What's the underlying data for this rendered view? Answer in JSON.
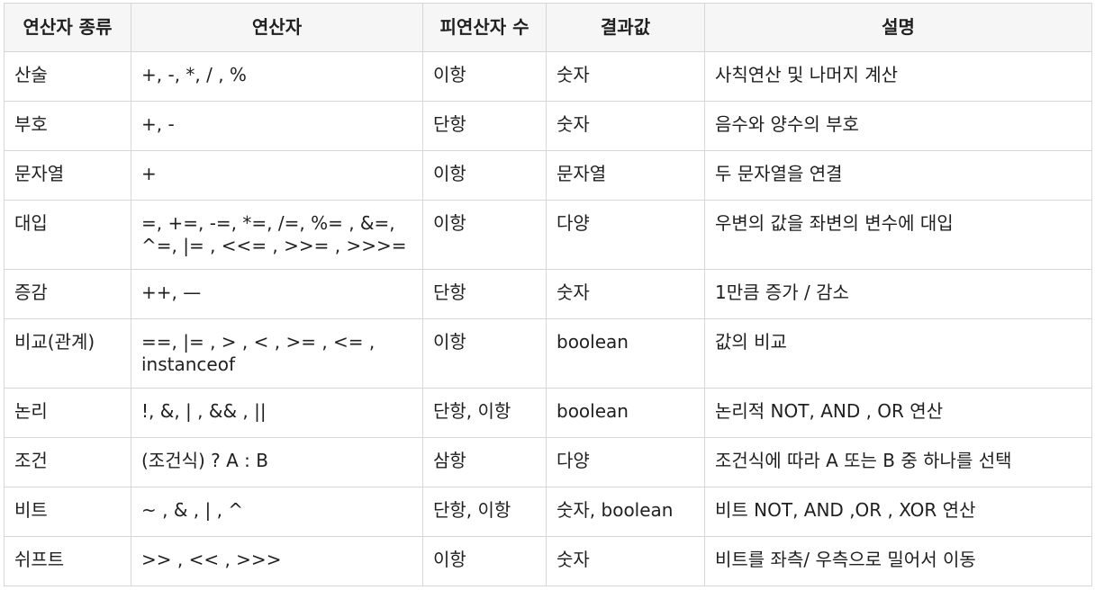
{
  "table": {
    "headers": [
      "연산자 종류",
      "연산자",
      "피연산자 수",
      "결과값",
      "설명"
    ],
    "rows": [
      {
        "kind": "산술",
        "operators": [
          "+, -, *, / , %"
        ],
        "operand_count": "이항",
        "result": "숫자",
        "description": "사칙연산 및 나머지 계산"
      },
      {
        "kind": "부호",
        "operators": [
          "+, -"
        ],
        "operand_count": "단항",
        "result": "숫자",
        "description": "음수와 양수의 부호"
      },
      {
        "kind": "문자열",
        "operators": [
          "+"
        ],
        "operand_count": "이항",
        "result": "문자열",
        "description": "두 문자열을 연결"
      },
      {
        "kind": "대입",
        "operators": [
          " =, +=, -=, *=, /=, %= , &=,",
          "^=, |= , <<= , >>= , >>>="
        ],
        "operand_count": "이항",
        "result": "다양",
        "description": "우변의 값을 좌변의 변수에 대입"
      },
      {
        "kind": "증감",
        "operators": [
          "++, —"
        ],
        "operand_count": "단항",
        "result": "숫자",
        "description": "1만큼 증가 / 감소"
      },
      {
        "kind": "비교(관계)",
        "operators": [
          " ==, |= , > , < , >= , <= ,",
          "instanceof"
        ],
        "operand_count": "이항",
        "result": "boolean",
        "description": "값의 비교"
      },
      {
        "kind": "논리",
        "operators": [
          "!, &, | , && , ||"
        ],
        "operand_count": "단항, 이항",
        "result": "boolean",
        "description": "논리적 NOT, AND , OR 연산"
      },
      {
        "kind": "조건",
        "operators": [
          "(조건식) ? A : B"
        ],
        "operand_count": "삼항",
        "result": "다양",
        "description": "조건식에 따라 A 또는 B 중 하나를 선택"
      },
      {
        "kind": "비트",
        "operators": [
          "~ , & , | , ^"
        ],
        "operand_count": "단항, 이항",
        "result": "숫자, boolean",
        "description": "비트 NOT, AND ,OR , XOR 연산"
      },
      {
        "kind": "쉬프트",
        "operators": [
          ">> , << , >>>"
        ],
        "operand_count": "이항",
        "result": "숫자",
        "description": "비트를 좌측/ 우측으로 밀어서 이동"
      }
    ]
  }
}
